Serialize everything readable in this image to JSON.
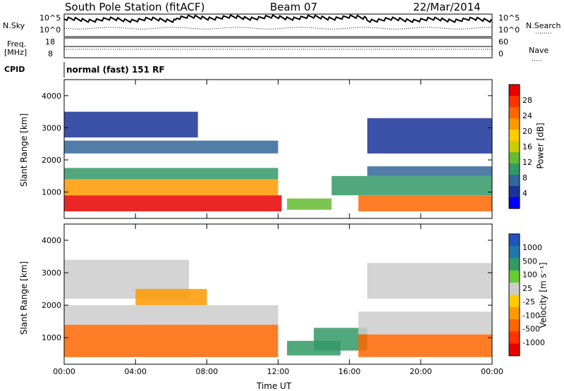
{
  "header": {
    "station": "South Pole Station (fitACF)",
    "beam": "Beam 07",
    "date": "22/Mar/2014"
  },
  "summary": {
    "nsky_label": "N.Sky",
    "nsearch_label": "N.Search",
    "freq_label_line1": "Freq.",
    "freq_label_line2": "[MHz]",
    "nave_label": "Nave",
    "cpid_label": "CPID",
    "cpid_value": "normal (fast) 151 RF",
    "n_ticks_left": [
      "10^5",
      "10^0"
    ],
    "n_ticks_right": [
      "10^5",
      "10^0"
    ],
    "freq_ticks": [
      "18",
      "8"
    ],
    "nave_ticks": [
      "60",
      "0"
    ]
  },
  "chart_data": [
    {
      "type": "heatmap",
      "name": "power",
      "ylabel": "Slant Range [km]",
      "xlabel": "",
      "xlim": [
        0,
        24
      ],
      "ylim": [
        180,
        4500
      ],
      "x_ticks": [
        "00:00",
        "04:00",
        "08:00",
        "12:00",
        "16:00",
        "20:00",
        "00:00"
      ],
      "y_ticks": [
        "1000",
        "2000",
        "3000",
        "4000"
      ],
      "colorbar": {
        "label": "Power [dB]",
        "ticks": [
          "28",
          "24",
          "20",
          "16",
          "12",
          "8",
          "4"
        ],
        "colors": [
          "#e60000",
          "#ff3300",
          "#ff6600",
          "#ff9900",
          "#ffcc00",
          "#cccc00",
          "#66bb33",
          "#339966",
          "#336699",
          "#1a3399",
          "#0000ff"
        ]
      },
      "bands": [
        {
          "t0": 0.0,
          "t1": 12.2,
          "r0": 400,
          "r1": 900,
          "level": 0
        },
        {
          "t0": 0.0,
          "t1": 12.0,
          "r0": 900,
          "r1": 1400,
          "level": 3
        },
        {
          "t0": 0.0,
          "t1": 12.0,
          "r0": 1400,
          "r1": 1750,
          "level": 7
        },
        {
          "t0": 0.0,
          "t1": 12.0,
          "r0": 2200,
          "r1": 2600,
          "level": 8
        },
        {
          "t0": 0.0,
          "t1": 7.5,
          "r0": 2700,
          "r1": 3500,
          "level": 9
        },
        {
          "t0": 12.5,
          "t1": 15.0,
          "r0": 450,
          "r1": 800,
          "level": 6
        },
        {
          "t0": 16.5,
          "t1": 24.0,
          "r0": 400,
          "r1": 900,
          "level": 2
        },
        {
          "t0": 15.0,
          "t1": 24.0,
          "r0": 900,
          "r1": 1500,
          "level": 7
        },
        {
          "t0": 17.0,
          "t1": 24.0,
          "r0": 1500,
          "r1": 1800,
          "level": 8
        },
        {
          "t0": 17.0,
          "t1": 24.0,
          "r0": 2200,
          "r1": 3300,
          "level": 9
        }
      ]
    },
    {
      "type": "heatmap",
      "name": "velocity",
      "ylabel": "Slant Range [km]",
      "xlabel": "Time UT",
      "xlim": [
        0,
        24
      ],
      "ylim": [
        180,
        4500
      ],
      "x_ticks": [
        "00:00",
        "04:00",
        "08:00",
        "12:00",
        "16:00",
        "20:00",
        "00:00"
      ],
      "y_ticks": [
        "1000",
        "2000",
        "3000",
        "4000"
      ],
      "colorbar": {
        "label": "Velocity [m s⁻¹]",
        "ticks": [
          "1000",
          "500",
          "100",
          "25",
          "-25",
          "-100",
          "-500",
          "-1000"
        ],
        "colors": [
          "#2255bb",
          "#2277aa",
          "#339966",
          "#66cc33",
          "#cccccc",
          "#ffcc00",
          "#ff9900",
          "#ff6600",
          "#ff3300",
          "#e60000"
        ]
      },
      "bands": [
        {
          "t0": 0.0,
          "t1": 12.0,
          "r0": 400,
          "r1": 1400,
          "level": 7
        },
        {
          "t0": 0.0,
          "t1": 12.0,
          "r0": 1400,
          "r1": 2000,
          "level": 4
        },
        {
          "t0": 0.0,
          "t1": 7.0,
          "r0": 2200,
          "r1": 3400,
          "level": 4
        },
        {
          "t0": 4.0,
          "t1": 8.0,
          "r0": 2000,
          "r1": 2500,
          "level": 6
        },
        {
          "t0": 12.5,
          "t1": 15.5,
          "r0": 450,
          "r1": 900,
          "level": 2
        },
        {
          "t0": 14.0,
          "t1": 17.0,
          "r0": 600,
          "r1": 1300,
          "level": 2
        },
        {
          "t0": 16.5,
          "t1": 24.0,
          "r0": 400,
          "r1": 1100,
          "level": 7
        },
        {
          "t0": 16.5,
          "t1": 24.0,
          "r0": 1100,
          "r1": 1800,
          "level": 4
        },
        {
          "t0": 17.0,
          "t1": 24.0,
          "r0": 2200,
          "r1": 3300,
          "level": 4
        }
      ]
    }
  ]
}
